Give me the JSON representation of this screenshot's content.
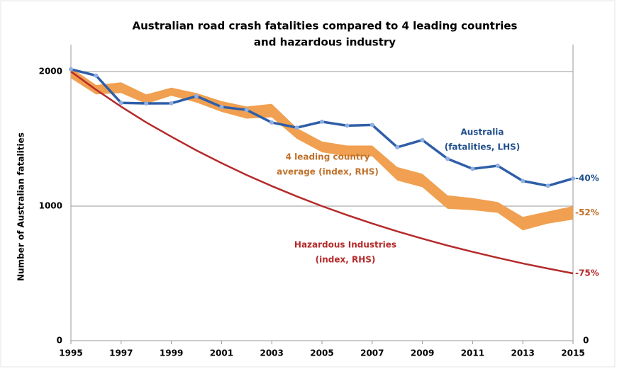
{
  "chart_data": {
    "type": "line",
    "title": [
      "Australian road crash fatalities compared to 4 leading countries",
      "and hazardous industry"
    ],
    "y_label": "Number of Australian fatalities",
    "x": [
      1995,
      1996,
      1997,
      1998,
      1999,
      2000,
      2001,
      2002,
      2003,
      2004,
      2005,
      2006,
      2007,
      2008,
      2009,
      2010,
      2011,
      2012,
      2013,
      2014,
      2015
    ],
    "xlim": [
      1995,
      2015
    ],
    "xticks": [
      1995,
      1997,
      1999,
      2001,
      2003,
      2005,
      2007,
      2009,
      2011,
      2013,
      2015
    ],
    "ylim": [
      0,
      2200
    ],
    "yticks": [
      0,
      1000,
      2000
    ],
    "y2lim": [
      0,
      2200
    ],
    "y2ticks": [
      0
    ],
    "grid": true,
    "series": [
      {
        "kind": "band",
        "axis": "y2",
        "name": [
          "4 leading country",
          "average (index, RHS)"
        ],
        "color": "#f0a050",
        "text_color": "#c0712a",
        "end_label": "-52%",
        "low": [
          1950,
          1830,
          1840,
          1760,
          1820,
          1770,
          1700,
          1650,
          1660,
          1500,
          1400,
          1370,
          1370,
          1190,
          1140,
          980,
          970,
          950,
          820,
          870,
          900
        ],
        "high": [
          2030,
          1900,
          1920,
          1830,
          1880,
          1840,
          1780,
          1740,
          1760,
          1580,
          1480,
          1450,
          1450,
          1290,
          1240,
          1080,
          1060,
          1030,
          920,
          960,
          1000
        ]
      },
      {
        "kind": "line",
        "axis": "y2",
        "name": [
          "Hazardous Industries",
          "(index, RHS)"
        ],
        "color": "#b52a2a",
        "text_color": "#b52a2a",
        "end_label": "-75%",
        "values": [
          2000,
          1865,
          1739,
          1622,
          1516,
          1414,
          1320,
          1231,
          1149,
          1072,
          1000,
          933,
          871,
          812,
          758,
          707,
          660,
          616,
          574,
          536,
          500
        ]
      },
      {
        "kind": "line",
        "name": [
          "Australia",
          "(fatalities, LHS)"
        ],
        "color": "#2f5ea8",
        "text_color": "#1f4e8c",
        "end_label": "-40%",
        "markers": true,
        "values": [
          2017,
          1970,
          1767,
          1763,
          1764,
          1817,
          1737,
          1715,
          1621,
          1583,
          1627,
          1598,
          1603,
          1437,
          1491,
          1352,
          1277,
          1300,
          1187,
          1151,
          1205
        ]
      }
    ]
  }
}
